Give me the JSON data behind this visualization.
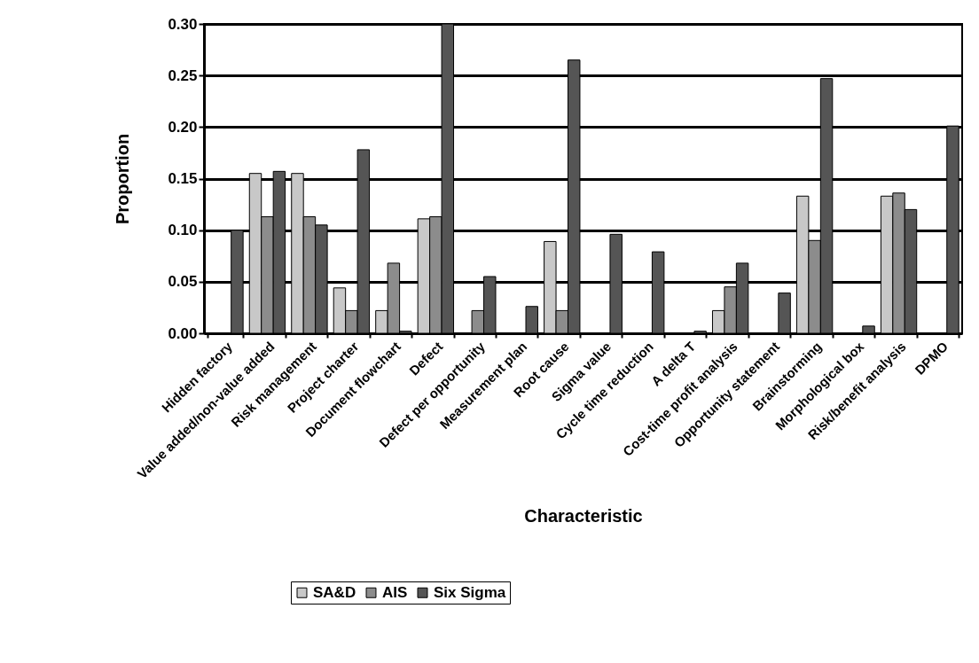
{
  "chart_data": {
    "type": "bar",
    "xlabel": "Characteristic",
    "ylabel": "Proportion",
    "categories": [
      "Hidden factory",
      "Value added/non-value added",
      "Risk management",
      "Project charter",
      "Document flowchart",
      "Defect",
      "Defect per opportunity",
      "Measurement plan",
      "Root cause",
      "Sigma value",
      "Cycle time reduction",
      "A delta T",
      "Cost-time profit analysis",
      "Opportunity statement",
      "Brainstorming",
      "Morphological box",
      "Risk/benefit analysis",
      "DPMO"
    ],
    "series": [
      {
        "name": "SA&D",
        "color": "#c8c8c8",
        "values": [
          null,
          0.155,
          0.155,
          0.044,
          0.022,
          0.111,
          null,
          null,
          0.089,
          null,
          null,
          null,
          0.022,
          null,
          0.133,
          null,
          0.133,
          null
        ]
      },
      {
        "name": "AIS",
        "color": "#8c8c8c",
        "values": [
          null,
          0.113,
          0.113,
          0.022,
          0.068,
          0.113,
          0.022,
          null,
          0.022,
          null,
          null,
          null,
          0.045,
          null,
          0.09,
          null,
          0.136,
          null
        ]
      },
      {
        "name": "Six Sigma",
        "color": "#555555",
        "values": [
          0.1,
          0.157,
          0.105,
          0.178,
          0.002,
          0.3,
          0.055,
          0.026,
          0.265,
          0.096,
          0.079,
          0.002,
          0.068,
          0.039,
          0.247,
          0.007,
          0.12,
          0.201
        ]
      }
    ],
    "ylim": [
      0,
      0.3
    ],
    "yticks": [
      {
        "value": 0,
        "label": "0.00"
      },
      {
        "value": 0.05,
        "label": "0.05"
      },
      {
        "value": 0.1,
        "label": "0.10"
      },
      {
        "value": 0.15,
        "label": "0.15"
      },
      {
        "value": 0.2,
        "label": "0.20"
      },
      {
        "value": 0.25,
        "label": "0.25"
      },
      {
        "value": 0.3,
        "label": "0.30"
      }
    ],
    "grid": "y",
    "legend": "bottom"
  }
}
